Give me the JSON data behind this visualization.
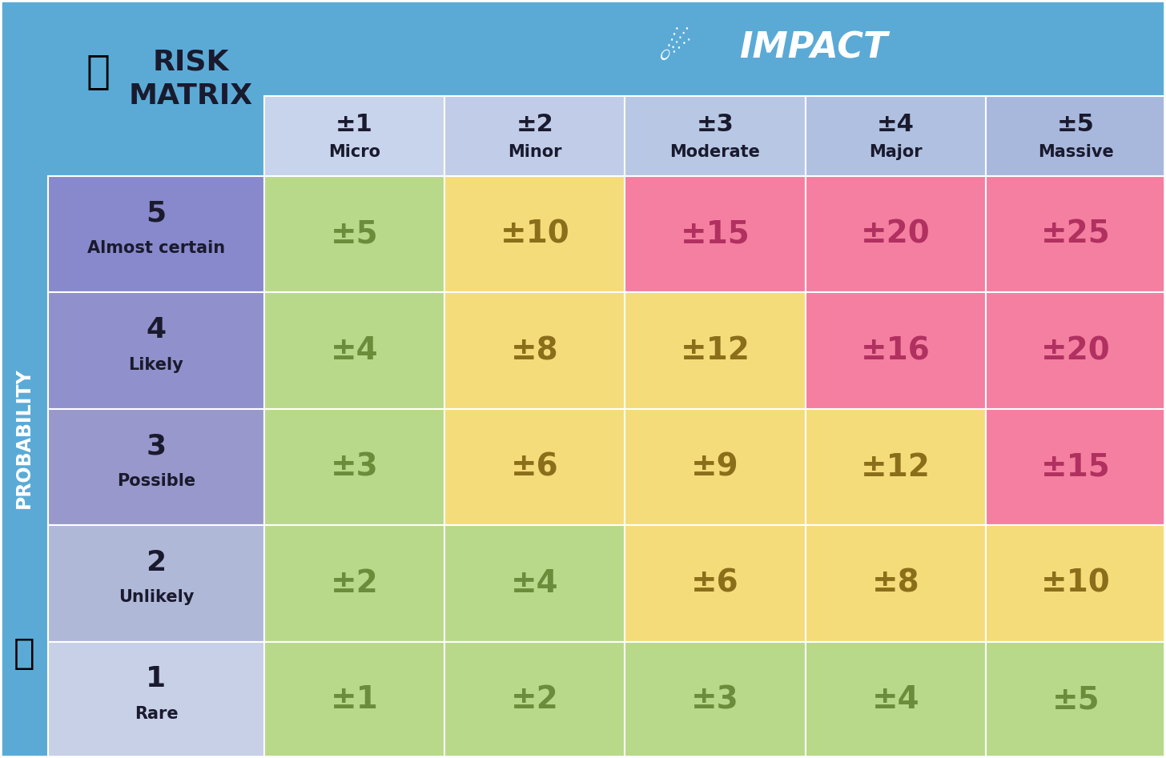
{
  "title_line1": "RISK",
  "title_line2": "MATRIX",
  "impact_label": "IMPACT",
  "probability_label": "PROBABILITY",
  "impact_cols": [
    {
      "num": "±1",
      "name": "Micro"
    },
    {
      "num": "±2",
      "name": "Minor"
    },
    {
      "num": "±3",
      "name": "Moderate"
    },
    {
      "num": "±4",
      "name": "Major"
    },
    {
      "num": "±5",
      "name": "Massive"
    }
  ],
  "prob_rows": [
    {
      "num": "5",
      "name": "Almost certain"
    },
    {
      "num": "4",
      "name": "Likely"
    },
    {
      "num": "3",
      "name": "Possible"
    },
    {
      "num": "2",
      "name": "Unlikely"
    },
    {
      "num": "1",
      "name": "Rare"
    }
  ],
  "matrix_values": [
    [
      "±5",
      "±10",
      "±15",
      "±20",
      "±25"
    ],
    [
      "±4",
      "±8",
      "±12",
      "±16",
      "±20"
    ],
    [
      "±3",
      "±6",
      "±9",
      "±12",
      "±15"
    ],
    [
      "±2",
      "±4",
      "±6",
      "±8",
      "±10"
    ],
    [
      "±1",
      "±2",
      "±3",
      "±4",
      "±5"
    ]
  ],
  "cell_colors": [
    [
      "#b8d98a",
      "#f5dc7a",
      "#f47fa0",
      "#f47fa0",
      "#f47fa0"
    ],
    [
      "#b8d98a",
      "#f5dc7a",
      "#f5dc7a",
      "#f47fa0",
      "#f47fa0"
    ],
    [
      "#b8d98a",
      "#f5dc7a",
      "#f5dc7a",
      "#f5dc7a",
      "#f47fa0"
    ],
    [
      "#b8d98a",
      "#b8d98a",
      "#f5dc7a",
      "#f5dc7a",
      "#f5dc7a"
    ],
    [
      "#b8d98a",
      "#b8d98a",
      "#b8d98a",
      "#b8d98a",
      "#b8d98a"
    ]
  ],
  "cell_text_colors": [
    [
      "#6b8c3a",
      "#8a6e1a",
      "#b03060",
      "#b03060",
      "#b03060"
    ],
    [
      "#6b8c3a",
      "#8a6e1a",
      "#8a6e1a",
      "#b03060",
      "#b03060"
    ],
    [
      "#6b8c3a",
      "#8a6e1a",
      "#8a6e1a",
      "#8a6e1a",
      "#b03060"
    ],
    [
      "#6b8c3a",
      "#6b8c3a",
      "#8a6e1a",
      "#8a6e1a",
      "#8a6e1a"
    ],
    [
      "#6b8c3a",
      "#6b8c3a",
      "#6b8c3a",
      "#6b8c3a",
      "#6b8c3a"
    ]
  ],
  "bg_blue": "#5baad6",
  "bg_blue_dark": "#4a9ac6",
  "header_col_bg": "#b8cce8",
  "prob_row_colors": [
    "#8888cc",
    "#9090cc",
    "#9898cc",
    "#b0b8d8",
    "#c8d0e8"
  ],
  "white": "#ffffff",
  "dark_text": "#1a1a2e",
  "figsize": [
    14.56,
    9.47
  ],
  "dpi": 100
}
